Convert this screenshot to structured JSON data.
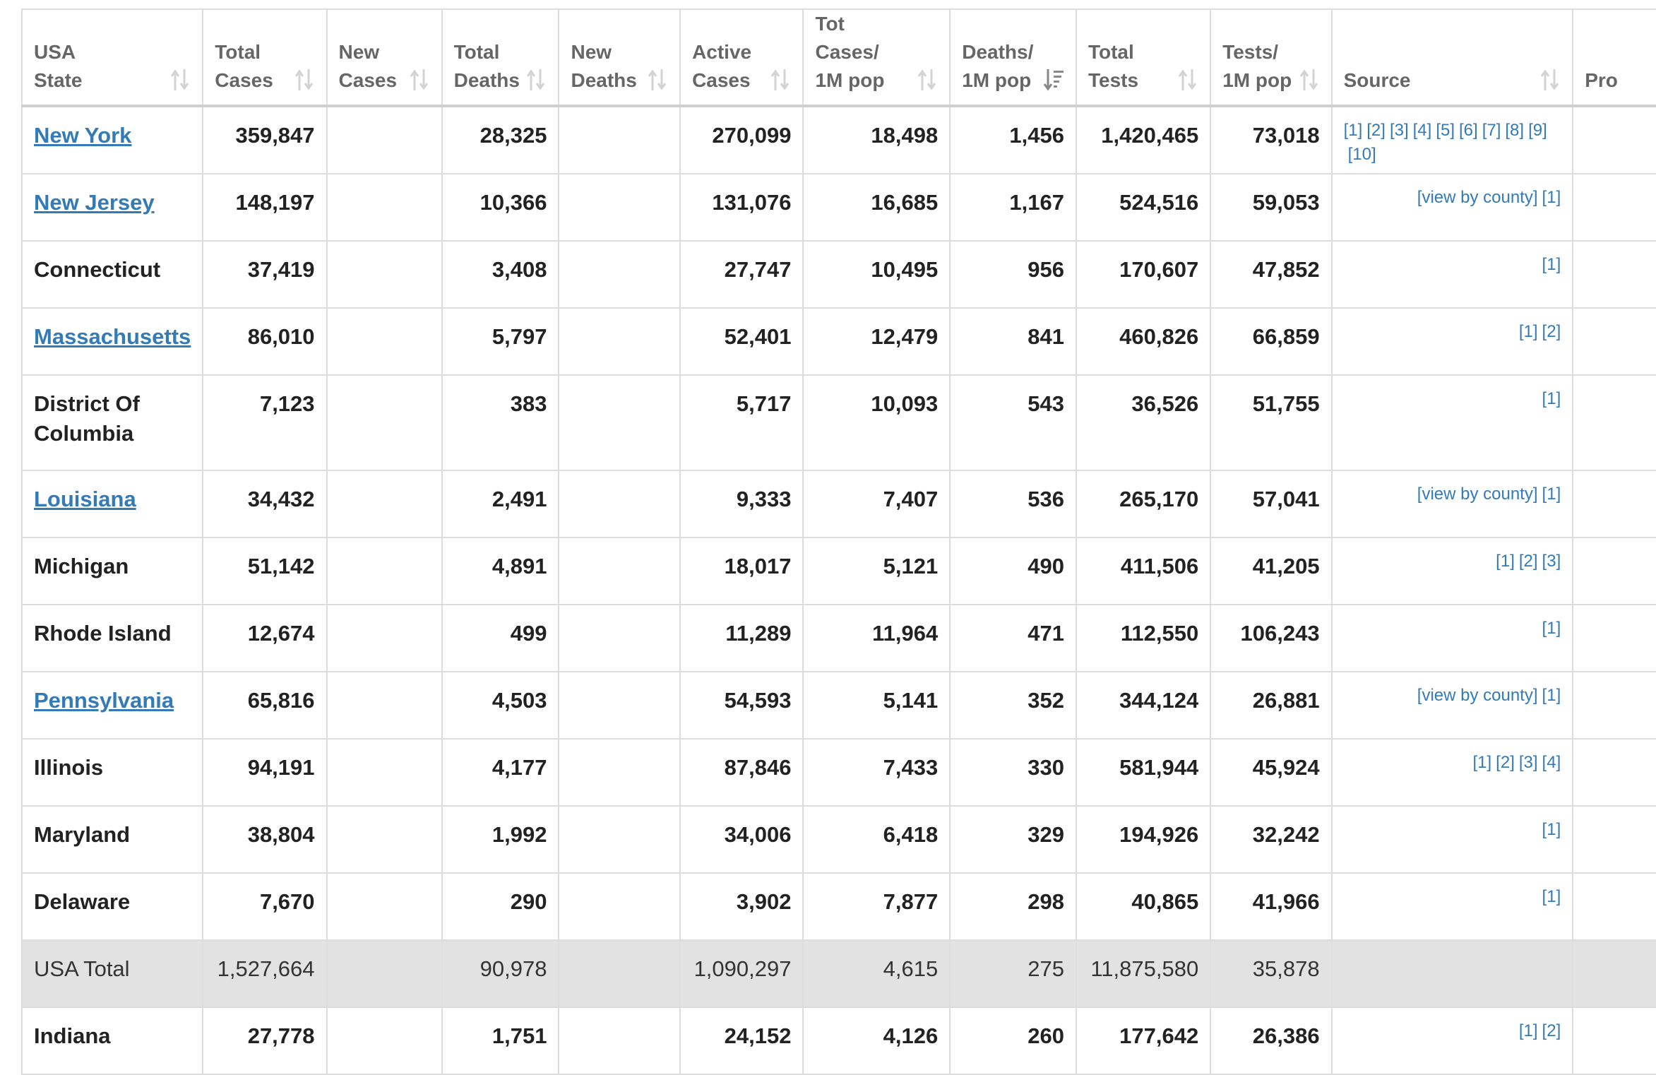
{
  "columns": [
    {
      "line1": "USA",
      "line2": "State"
    },
    {
      "line1": "Total",
      "line2": "Cases"
    },
    {
      "line1": "New",
      "line2": "Cases"
    },
    {
      "line1": "Total",
      "line2": "Deaths"
    },
    {
      "line1": "New",
      "line2": "Deaths"
    },
    {
      "line1": "Active",
      "line2": "Cases"
    },
    {
      "line1": "Tot Cases/",
      "line2": "1M pop"
    },
    {
      "line1": "Deaths/",
      "line2": "1M pop"
    },
    {
      "line1": "Total",
      "line2": "Tests"
    },
    {
      "line1": "Tests/",
      "line2": "1M pop"
    },
    {
      "line1": "",
      "line2": "Source"
    },
    {
      "line1": "",
      "line2": "Pro"
    }
  ],
  "rows": [
    {
      "state": "New York",
      "link": true,
      "total_cases": "359,847",
      "new_cases": "",
      "total_deaths": "28,325",
      "new_deaths": "",
      "active_cases": "270,099",
      "cases_per_1m": "18,498",
      "deaths_per_1m": "1,456",
      "total_tests": "1,420,465",
      "tests_per_1m": "73,018",
      "sources": [
        "[1]",
        "[2]",
        "[3]",
        "[4]",
        "[5]",
        "[6]",
        "[7]",
        "[8]",
        "[9]",
        "[10]"
      ]
    },
    {
      "state": "New Jersey",
      "link": true,
      "total_cases": "148,197",
      "new_cases": "",
      "total_deaths": "10,366",
      "new_deaths": "",
      "active_cases": "131,076",
      "cases_per_1m": "16,685",
      "deaths_per_1m": "1,167",
      "total_tests": "524,516",
      "tests_per_1m": "59,053",
      "sources": [
        "[view by county]",
        "[1]"
      ]
    },
    {
      "state": "Connecticut",
      "link": false,
      "total_cases": "37,419",
      "new_cases": "",
      "total_deaths": "3,408",
      "new_deaths": "",
      "active_cases": "27,747",
      "cases_per_1m": "10,495",
      "deaths_per_1m": "956",
      "total_tests": "170,607",
      "tests_per_1m": "47,852",
      "sources": [
        "[1]"
      ]
    },
    {
      "state": "Massachusetts",
      "link": true,
      "total_cases": "86,010",
      "new_cases": "",
      "total_deaths": "5,797",
      "new_deaths": "",
      "active_cases": "52,401",
      "cases_per_1m": "12,479",
      "deaths_per_1m": "841",
      "total_tests": "460,826",
      "tests_per_1m": "66,859",
      "sources": [
        "[1]",
        "[2]"
      ]
    },
    {
      "state": "District Of Columbia",
      "link": false,
      "total_cases": "7,123",
      "new_cases": "",
      "total_deaths": "383",
      "new_deaths": "",
      "active_cases": "5,717",
      "cases_per_1m": "10,093",
      "deaths_per_1m": "543",
      "total_tests": "36,526",
      "tests_per_1m": "51,755",
      "sources": [
        "[1]"
      ]
    },
    {
      "state": "Louisiana",
      "link": true,
      "total_cases": "34,432",
      "new_cases": "",
      "total_deaths": "2,491",
      "new_deaths": "",
      "active_cases": "9,333",
      "cases_per_1m": "7,407",
      "deaths_per_1m": "536",
      "total_tests": "265,170",
      "tests_per_1m": "57,041",
      "sources": [
        "[view by county]",
        "[1]"
      ]
    },
    {
      "state": "Michigan",
      "link": false,
      "total_cases": "51,142",
      "new_cases": "",
      "total_deaths": "4,891",
      "new_deaths": "",
      "active_cases": "18,017",
      "cases_per_1m": "5,121",
      "deaths_per_1m": "490",
      "total_tests": "411,506",
      "tests_per_1m": "41,205",
      "sources": [
        "[1]",
        "[2]",
        "[3]"
      ]
    },
    {
      "state": "Rhode Island",
      "link": false,
      "total_cases": "12,674",
      "new_cases": "",
      "total_deaths": "499",
      "new_deaths": "",
      "active_cases": "11,289",
      "cases_per_1m": "11,964",
      "deaths_per_1m": "471",
      "total_tests": "112,550",
      "tests_per_1m": "106,243",
      "sources": [
        "[1]"
      ]
    },
    {
      "state": "Pennsylvania",
      "link": true,
      "total_cases": "65,816",
      "new_cases": "",
      "total_deaths": "4,503",
      "new_deaths": "",
      "active_cases": "54,593",
      "cases_per_1m": "5,141",
      "deaths_per_1m": "352",
      "total_tests": "344,124",
      "tests_per_1m": "26,881",
      "sources": [
        "[view by county]",
        "[1]"
      ]
    },
    {
      "state": "Illinois",
      "link": false,
      "total_cases": "94,191",
      "new_cases": "",
      "total_deaths": "4,177",
      "new_deaths": "",
      "active_cases": "87,846",
      "cases_per_1m": "7,433",
      "deaths_per_1m": "330",
      "total_tests": "581,944",
      "tests_per_1m": "45,924",
      "sources": [
        "[1]",
        "[2]",
        "[3]",
        "[4]"
      ]
    },
    {
      "state": "Maryland",
      "link": false,
      "total_cases": "38,804",
      "new_cases": "",
      "total_deaths": "1,992",
      "new_deaths": "",
      "active_cases": "34,006",
      "cases_per_1m": "6,418",
      "deaths_per_1m": "329",
      "total_tests": "194,926",
      "tests_per_1m": "32,242",
      "sources": [
        "[1]"
      ]
    },
    {
      "state": "Delaware",
      "link": false,
      "total_cases": "7,670",
      "new_cases": "",
      "total_deaths": "290",
      "new_deaths": "",
      "active_cases": "3,902",
      "cases_per_1m": "7,877",
      "deaths_per_1m": "298",
      "total_tests": "40,865",
      "tests_per_1m": "41,966",
      "sources": [
        "[1]"
      ]
    }
  ],
  "total_row": {
    "state": "USA Total",
    "total_cases": "1,527,664",
    "new_cases": "",
    "total_deaths": "90,978",
    "new_deaths": "",
    "active_cases": "1,090,297",
    "cases_per_1m": "4,615",
    "deaths_per_1m": "275",
    "total_tests": "11,875,580",
    "tests_per_1m": "35,878"
  },
  "partial_row": {
    "state": "Indiana",
    "link": false,
    "total_cases": "27,778",
    "new_cases": "",
    "total_deaths": "1,751",
    "new_deaths": "",
    "active_cases": "24,152",
    "cases_per_1m": "4,126",
    "deaths_per_1m": "260",
    "total_tests": "177,642",
    "tests_per_1m": "26,386",
    "sources": [
      "[1]",
      "[2]"
    ]
  },
  "sort_icons": [
    "sort-icon",
    "sort-active-desc-icon"
  ],
  "colors": {
    "link": "#337ab7",
    "border": "#dddddd",
    "total_row_bg": "#e2e2e2",
    "header_text": "#666666"
  }
}
